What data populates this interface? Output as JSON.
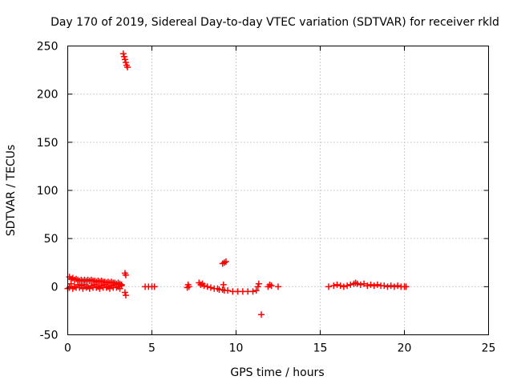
{
  "chart_data": {
    "type": "scatter",
    "title": "Day 170 of 2019, Sidereal Day-to-day VTEC variation (SDTVAR) for receiver rkld",
    "xlabel": "GPS time / hours",
    "ylabel": "SDTVAR / TECUs",
    "xlim": [
      0,
      25
    ],
    "ylim": [
      -50,
      250
    ],
    "xticks": [
      0,
      5,
      10,
      15,
      20,
      25
    ],
    "yticks": [
      -50,
      0,
      50,
      100,
      150,
      200,
      250
    ],
    "grid": true,
    "marker_color": "#ff0000",
    "series": [
      {
        "name": "SDTVAR",
        "points": [
          [
            0.0,
            -2
          ],
          [
            0.1,
            10
          ],
          [
            0.1,
            -1
          ],
          [
            0.2,
            8
          ],
          [
            0.2,
            3
          ],
          [
            0.3,
            9
          ],
          [
            0.3,
            -2
          ],
          [
            0.4,
            7
          ],
          [
            0.4,
            0
          ],
          [
            0.5,
            8
          ],
          [
            0.5,
            -1
          ],
          [
            0.6,
            7
          ],
          [
            0.6,
            2
          ],
          [
            0.7,
            6
          ],
          [
            0.7,
            -1
          ],
          [
            0.8,
            7
          ],
          [
            0.8,
            1
          ],
          [
            0.9,
            6
          ],
          [
            0.9,
            -2
          ],
          [
            1.0,
            7
          ],
          [
            1.0,
            2
          ],
          [
            1.1,
            6
          ],
          [
            1.1,
            -1
          ],
          [
            1.2,
            7
          ],
          [
            1.2,
            0
          ],
          [
            1.3,
            6
          ],
          [
            1.3,
            -2
          ],
          [
            1.4,
            7
          ],
          [
            1.4,
            1
          ],
          [
            1.5,
            6
          ],
          [
            1.5,
            -1
          ],
          [
            1.6,
            6
          ],
          [
            1.6,
            2
          ],
          [
            1.7,
            5
          ],
          [
            1.7,
            -1
          ],
          [
            1.8,
            6
          ],
          [
            1.8,
            0
          ],
          [
            1.9,
            5
          ],
          [
            1.9,
            -2
          ],
          [
            2.0,
            6
          ],
          [
            2.0,
            1
          ],
          [
            2.1,
            5
          ],
          [
            2.1,
            -1
          ],
          [
            2.2,
            5
          ],
          [
            2.2,
            2
          ],
          [
            2.3,
            4
          ],
          [
            2.3,
            -1
          ],
          [
            2.4,
            5
          ],
          [
            2.4,
            0
          ],
          [
            2.5,
            4
          ],
          [
            2.5,
            -2
          ],
          [
            2.6,
            5
          ],
          [
            2.6,
            1
          ],
          [
            2.7,
            4
          ],
          [
            2.7,
            -1
          ],
          [
            2.8,
            4
          ],
          [
            2.8,
            2
          ],
          [
            2.9,
            3
          ],
          [
            2.9,
            -1
          ],
          [
            3.0,
            4
          ],
          [
            3.0,
            0
          ],
          [
            3.1,
            3
          ],
          [
            3.1,
            -2
          ],
          [
            3.2,
            2
          ],
          [
            3.2,
            1
          ],
          [
            3.3,
            242
          ],
          [
            3.35,
            239
          ],
          [
            3.4,
            236
          ],
          [
            3.45,
            233
          ],
          [
            3.5,
            230
          ],
          [
            3.55,
            228
          ],
          [
            3.4,
            14
          ],
          [
            3.45,
            12
          ],
          [
            3.4,
            -6
          ],
          [
            3.45,
            -9
          ],
          [
            4.6,
            0
          ],
          [
            4.8,
            0
          ],
          [
            5.0,
            0
          ],
          [
            5.15,
            0
          ],
          [
            7.1,
            -1
          ],
          [
            7.15,
            2
          ],
          [
            7.2,
            0
          ],
          [
            7.8,
            4
          ],
          [
            7.9,
            2
          ],
          [
            8.0,
            3
          ],
          [
            8.1,
            1
          ],
          [
            8.3,
            0
          ],
          [
            8.5,
            -1
          ],
          [
            8.7,
            -2
          ],
          [
            8.9,
            -2
          ],
          [
            9.0,
            -3
          ],
          [
            9.2,
            -3
          ],
          [
            9.25,
            2
          ],
          [
            9.3,
            -4
          ],
          [
            9.2,
            24
          ],
          [
            9.3,
            25
          ],
          [
            9.4,
            26
          ],
          [
            9.5,
            -4
          ],
          [
            9.8,
            -5
          ],
          [
            10.1,
            -5
          ],
          [
            10.4,
            -5
          ],
          [
            10.7,
            -5
          ],
          [
            11.0,
            -5
          ],
          [
            11.2,
            -4
          ],
          [
            11.3,
            0
          ],
          [
            11.35,
            3
          ],
          [
            11.5,
            -29
          ],
          [
            11.9,
            0
          ],
          [
            12.0,
            2
          ],
          [
            12.1,
            1
          ],
          [
            12.5,
            0
          ],
          [
            15.5,
            0
          ],
          [
            15.8,
            1
          ],
          [
            16.0,
            2
          ],
          [
            16.2,
            1
          ],
          [
            16.4,
            0
          ],
          [
            16.6,
            1
          ],
          [
            16.8,
            2
          ],
          [
            17.0,
            3
          ],
          [
            17.1,
            4
          ],
          [
            17.2,
            3
          ],
          [
            17.4,
            2
          ],
          [
            17.6,
            3
          ],
          [
            17.8,
            1
          ],
          [
            18.0,
            2
          ],
          [
            18.2,
            1
          ],
          [
            18.4,
            2
          ],
          [
            18.6,
            1
          ],
          [
            18.8,
            1
          ],
          [
            19.0,
            0
          ],
          [
            19.2,
            1
          ],
          [
            19.4,
            0
          ],
          [
            19.6,
            1
          ],
          [
            19.8,
            0
          ],
          [
            20.0,
            0
          ],
          [
            20.1,
            0
          ]
        ]
      }
    ]
  }
}
